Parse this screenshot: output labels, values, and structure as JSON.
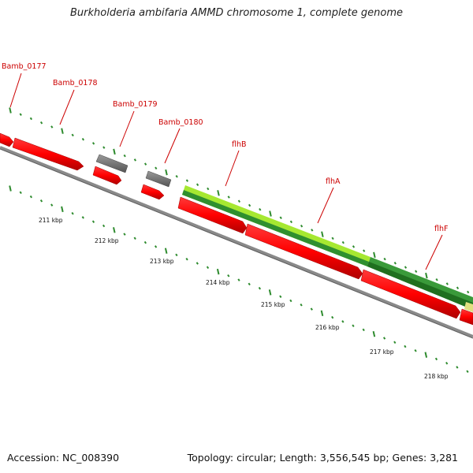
{
  "title": "Burkholderia ambifaria AMMD chromosome 1, complete genome",
  "footer": {
    "accession": "Accession: NC_008390",
    "summary": "Topology: circular; Length: 3,556,545 bp; Genes: 3,281"
  },
  "colors": {
    "forward_gene": "#ff0000",
    "other_gene": "#777777",
    "flagellar_gene_light": "#aaee33",
    "flagellar_gene_dark": "#2e8b2e",
    "label_text": "#cc0000",
    "tick": "#2e8b2e",
    "backbone": "#888888"
  },
  "gene_labels": [
    "Bamb_0177",
    "Bamb_0178",
    "Bamb_0179",
    "Bamb_0180",
    "flhB",
    "flhA",
    "flhF"
  ],
  "kbp_labels": [
    "211 kbp",
    "212 kbp",
    "213 kbp",
    "214 kbp",
    "215 kbp",
    "216 kbp",
    "217 kbp",
    "218 kbp"
  ]
}
